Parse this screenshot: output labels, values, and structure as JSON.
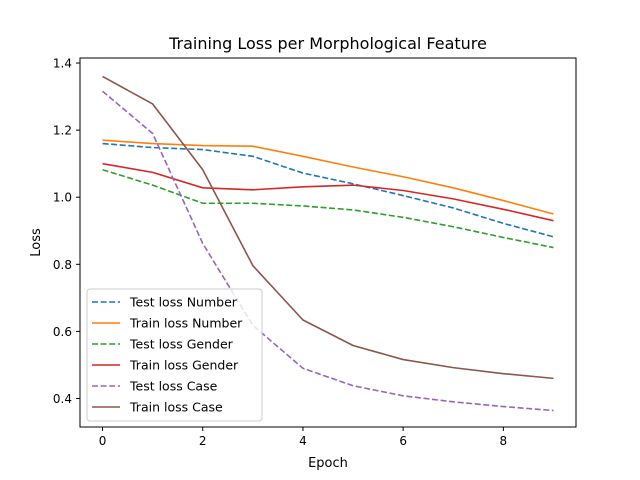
{
  "chart_data": {
    "type": "line",
    "title": "Training Loss per Morphological Feature",
    "xlabel": "Epoch",
    "ylabel": "Loss",
    "x": [
      0,
      1,
      2,
      3,
      4,
      5,
      6,
      7,
      8,
      9
    ],
    "xlim": [
      -0.45,
      9.45
    ],
    "ylim": [
      0.315,
      1.415
    ],
    "xticks": [
      0,
      2,
      4,
      6,
      8
    ],
    "yticks": [
      0.4,
      0.6,
      0.8,
      1.0,
      1.2,
      1.4
    ],
    "xtick_labels": [
      "0",
      "2",
      "4",
      "6",
      "8"
    ],
    "ytick_labels": [
      "0.4",
      "0.6",
      "0.8",
      "1.0",
      "1.2",
      "1.4"
    ],
    "grid": false,
    "legend_position": "lower-left",
    "series": [
      {
        "name": "Test loss Number",
        "color": "#1f77b4",
        "style": "dashed",
        "values": [
          1.16,
          1.148,
          1.142,
          1.122,
          1.072,
          1.04,
          1.005,
          0.968,
          0.922,
          0.882
        ]
      },
      {
        "name": "Train loss Number",
        "color": "#ff7f0e",
        "style": "solid",
        "values": [
          1.17,
          1.16,
          1.154,
          1.152,
          1.122,
          1.09,
          1.061,
          1.028,
          0.99,
          0.95
        ]
      },
      {
        "name": "Test loss Gender",
        "color": "#2ca02c",
        "style": "dashed",
        "values": [
          1.082,
          1.036,
          0.982,
          0.982,
          0.974,
          0.962,
          0.94,
          0.912,
          0.88,
          0.85
        ]
      },
      {
        "name": "Train loss Gender",
        "color": "#d62728",
        "style": "solid",
        "values": [
          1.1,
          1.074,
          1.028,
          1.022,
          1.031,
          1.036,
          1.02,
          0.995,
          0.964,
          0.93
        ]
      },
      {
        "name": "Test loss Case",
        "color": "#9467bd",
        "style": "dashed",
        "values": [
          1.316,
          1.19,
          0.862,
          0.618,
          0.49,
          0.438,
          0.408,
          0.39,
          0.376,
          0.364
        ]
      },
      {
        "name": "Train loss Case",
        "color": "#8c564b",
        "style": "solid",
        "values": [
          1.36,
          1.278,
          1.082,
          0.796,
          0.634,
          0.558,
          0.516,
          0.492,
          0.474,
          0.46
        ]
      }
    ]
  }
}
